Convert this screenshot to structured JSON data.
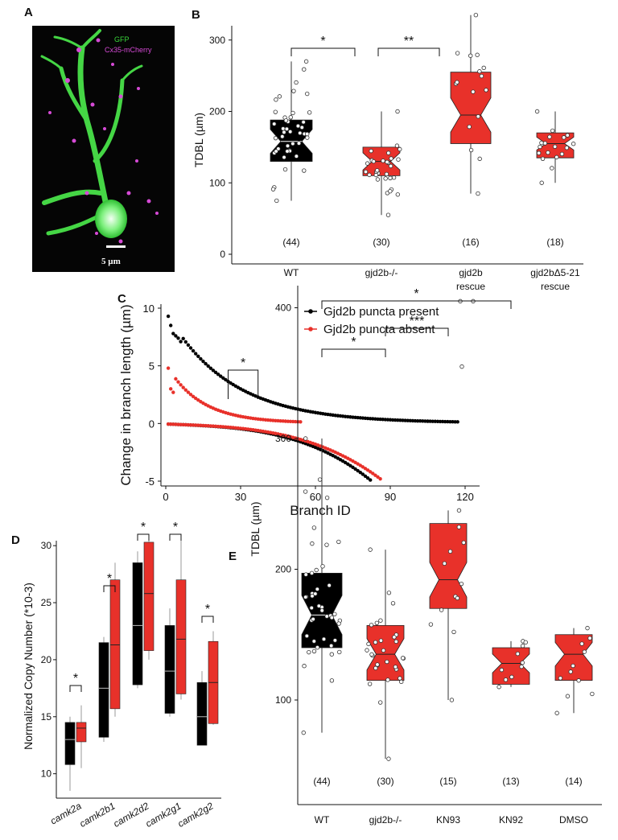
{
  "panels": {
    "a": {
      "letter": "A",
      "legend": [
        "GFP",
        "Cx35-mCherry"
      ],
      "scale_label": "5 µm"
    },
    "b": {
      "letter": "B"
    },
    "c": {
      "letter": "C"
    },
    "d": {
      "letter": "D"
    },
    "e": {
      "letter": "E"
    }
  },
  "colors": {
    "black": "#000000",
    "red": "#e8312a",
    "gfp": "#39d83a",
    "mcherry": "#d64ad6"
  },
  "chart_data": [
    {
      "id": "B",
      "type": "box",
      "ylabel": "TDBL (µm)",
      "ylim": [
        0,
        320
      ],
      "yticks": [
        "0",
        "100",
        "200",
        "300"
      ],
      "groups": [
        {
          "label": "WT",
          "label2": "",
          "n": "(44)",
          "color": "black",
          "min": 75,
          "q1": 130,
          "median": 158,
          "q3": 188,
          "max": 270
        },
        {
          "label": "gjd2b-/-",
          "label2": "",
          "n": "(30)",
          "color": "red",
          "min": 55,
          "q1": 110,
          "median": 130,
          "q3": 150,
          "max": 200
        },
        {
          "label": "gjd2b",
          "label2": "rescue",
          "n": "(16)",
          "color": "red",
          "min": 85,
          "q1": 155,
          "median": 195,
          "q3": 255,
          "max": 335
        },
        {
          "label": "gjd2bΔ5-21",
          "label2": "rescue",
          "n": "(18)",
          "color": "red",
          "min": 100,
          "q1": 135,
          "median": 155,
          "q3": 170,
          "max": 200
        }
      ],
      "brackets": [
        {
          "from": 0,
          "to": 1,
          "label": "*"
        },
        {
          "from": 1,
          "to": 2,
          "label": "**"
        }
      ]
    },
    {
      "id": "C",
      "type": "scatter",
      "xlabel": "Branch ID",
      "ylabel": "Change in branch length (µm)",
      "xlim": [
        0,
        120
      ],
      "ylim": [
        -5,
        10
      ],
      "xticks": [
        "0",
        "30",
        "60",
        "90",
        "120"
      ],
      "yticks": [
        "-5",
        "0",
        "5",
        "10"
      ],
      "series": [
        {
          "name": "Gjd2b puncta present",
          "color": "black",
          "positive_count": 117,
          "positive_range": [
            9.3,
            0.05
          ],
          "negative_count": 82,
          "negative_range": [
            -0.05,
            -4.9
          ]
        },
        {
          "name": "Gjd2b puncta absent",
          "color": "red",
          "positive_count": 54,
          "positive_range": [
            4.8,
            0.05
          ],
          "negative_count": 86,
          "negative_range": [
            -0.05,
            -4.8
          ]
        }
      ],
      "bracket": {
        "label": "*",
        "x_from": 25,
        "x_to": 37
      }
    },
    {
      "id": "D",
      "type": "box",
      "ylabel": "Normalized Copy Number (*10-3)",
      "ylim": [
        8,
        31
      ],
      "yticks": [
        "10",
        "15",
        "20",
        "25",
        "30"
      ],
      "categories": [
        "camk2a",
        "camk2b1",
        "camk2d2",
        "camk2g1",
        "camk2g2"
      ],
      "series": [
        {
          "color": "black",
          "boxes": [
            {
              "min": 8.5,
              "q1": 10.8,
              "median": 13.0,
              "q3": 14.5,
              "max": 15.0
            },
            {
              "min": 12.8,
              "q1": 13.2,
              "median": 17.5,
              "q3": 21.5,
              "max": 22.0
            },
            {
              "min": 17.5,
              "q1": 17.8,
              "median": 23.0,
              "q3": 28.5,
              "max": 29.5
            },
            {
              "min": 15.0,
              "q1": 15.3,
              "median": 19.0,
              "q3": 23.0,
              "max": 24.5
            },
            {
              "min": 12.5,
              "q1": 12.5,
              "median": 15.0,
              "q3": 18.0,
              "max": 19.0
            }
          ]
        },
        {
          "color": "red",
          "boxes": [
            {
              "min": 10.5,
              "q1": 12.8,
              "median": 14.0,
              "q3": 14.5,
              "max": 16.0
            },
            {
              "min": 15.0,
              "q1": 15.7,
              "median": 21.3,
              "q3": 27.0,
              "max": 28.5
            },
            {
              "min": 20.0,
              "q1": 20.8,
              "median": 25.8,
              "q3": 30.3,
              "max": 30.5
            },
            {
              "min": 16.5,
              "q1": 17.0,
              "median": 21.8,
              "q3": 27.0,
              "max": 31.0
            },
            {
              "min": 14.3,
              "q1": 14.4,
              "median": 18.0,
              "q3": 21.6,
              "max": 22.5
            }
          ]
        }
      ],
      "bracket_label": "*"
    },
    {
      "id": "E",
      "type": "box",
      "ylabel": "TDBL (µm)",
      "ylim": [
        20,
        420
      ],
      "yticks": [
        "100",
        "200",
        "300",
        "400"
      ],
      "groups": [
        {
          "label": "WT",
          "n": "(44)",
          "color": "black",
          "min": 75,
          "q1": 140,
          "median": 165,
          "q3": 197,
          "max": 300
        },
        {
          "label": "gjd2b-/-",
          "n": "(30)",
          "color": "red",
          "min": 55,
          "q1": 115,
          "median": 135,
          "q3": 157,
          "max": 215
        },
        {
          "label": "KN93",
          "n": "(15)",
          "color": "red",
          "min": 100,
          "q1": 170,
          "median": 192,
          "q3": 235,
          "max": 245
        },
        {
          "label": "KN92",
          "n": "(13)",
          "color": "red",
          "min": 110,
          "q1": 112,
          "median": 128,
          "q3": 140,
          "max": 145
        },
        {
          "label": "DMSO",
          "n": "(14)",
          "color": "red",
          "min": 90,
          "q1": 115,
          "median": 135,
          "q3": 150,
          "max": 155
        }
      ],
      "brackets": [
        {
          "from": 0,
          "to": 3,
          "label": "*"
        },
        {
          "from": 0,
          "to": 1,
          "label": "*"
        },
        {
          "from": 1,
          "to": 2,
          "label": "***"
        }
      ]
    }
  ]
}
